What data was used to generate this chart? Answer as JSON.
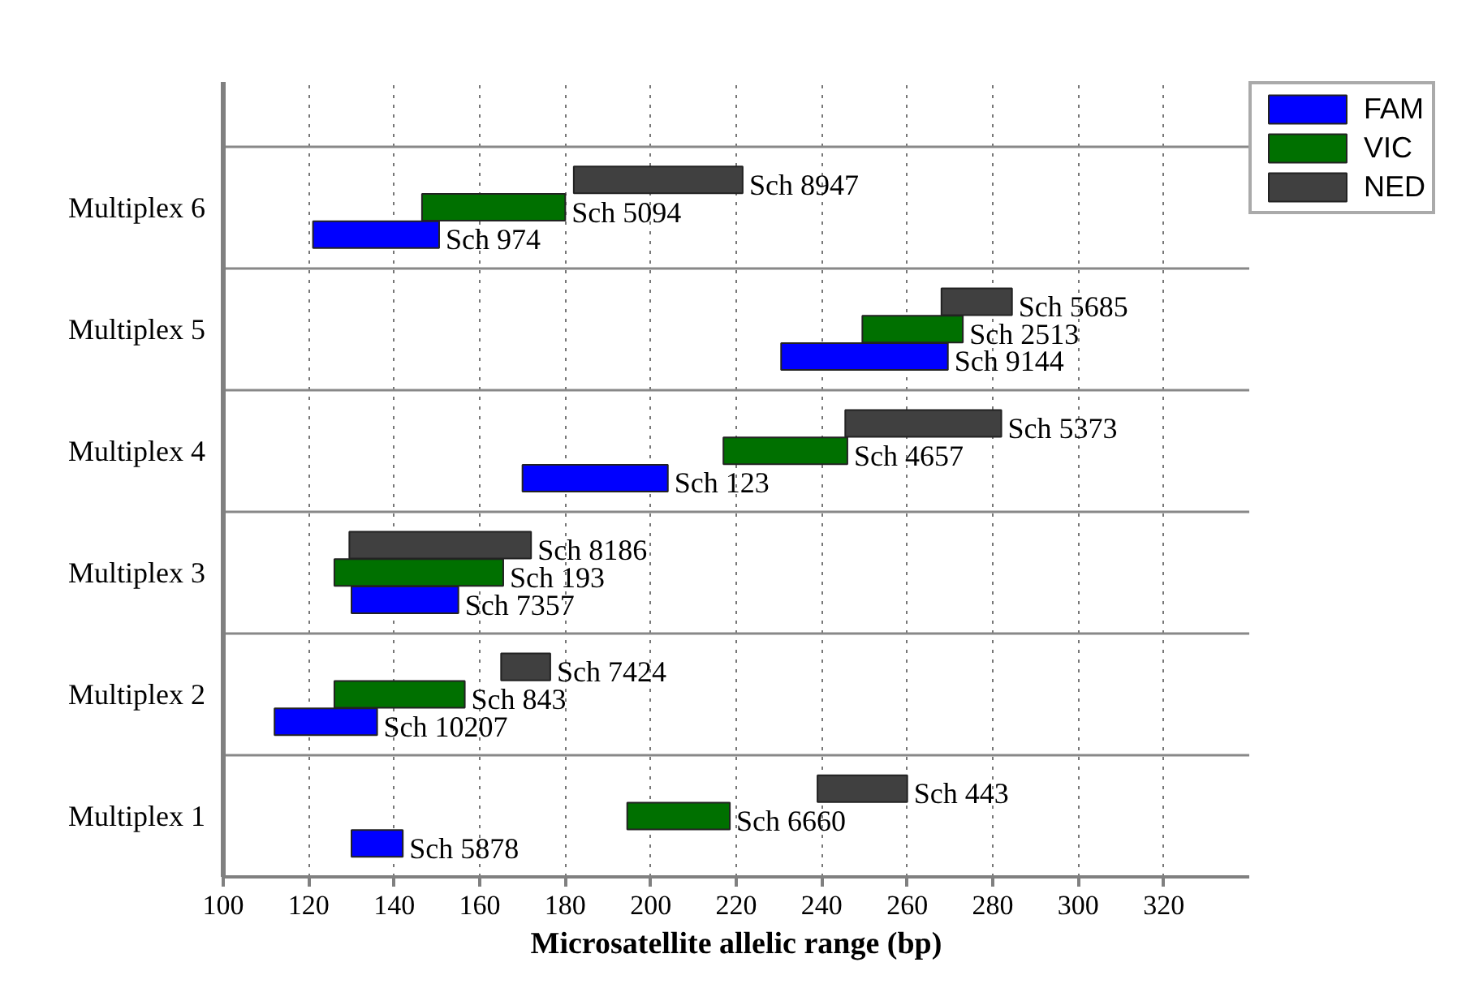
{
  "chart_data": {
    "type": "bar",
    "orientation": "horizontal",
    "xlabel": "Microsatellite allelic range (bp)",
    "categories": [
      "Multiplex 6",
      "Multiplex 5",
      "Multiplex 4",
      "Multiplex 3",
      "Multiplex 2",
      "Multiplex 1"
    ],
    "series": [
      {
        "name": "FAM",
        "color": "#0000ff",
        "base": [
          121,
          230.5,
          170,
          130,
          112,
          130
        ],
        "values": [
          29.5,
          39,
          34,
          25,
          24,
          12
        ],
        "value_labels": [
          "Sch 974",
          "Sch 9144",
          "Sch 123",
          "Sch 7357",
          "Sch 10207",
          "Sch 5878"
        ]
      },
      {
        "name": "VIC",
        "color": "#007000",
        "base": [
          146.5,
          249.5,
          217,
          126,
          126,
          194.5
        ],
        "values": [
          33.5,
          23.5,
          29,
          39.5,
          30.5,
          24
        ],
        "value_labels": [
          "Sch 5094",
          "Sch 2513",
          "Sch 4657",
          "Sch 193",
          "Sch 843",
          "Sch 6660"
        ]
      },
      {
        "name": "NED",
        "color": "#404040",
        "base": [
          182,
          268,
          245.5,
          129.5,
          165,
          239
        ],
        "values": [
          39.5,
          16.5,
          36.5,
          42.5,
          11.5,
          21
        ],
        "value_labels": [
          "Sch 8947",
          "Sch 5685",
          "Sch 5373",
          "Sch 8186",
          "Sch 7424",
          "Sch 443"
        ]
      }
    ],
    "xlim": [
      100,
      340
    ],
    "xticks": [
      100,
      120,
      140,
      160,
      180,
      200,
      220,
      240,
      260,
      280,
      300,
      320
    ],
    "grid": true,
    "legend": "top right"
  }
}
